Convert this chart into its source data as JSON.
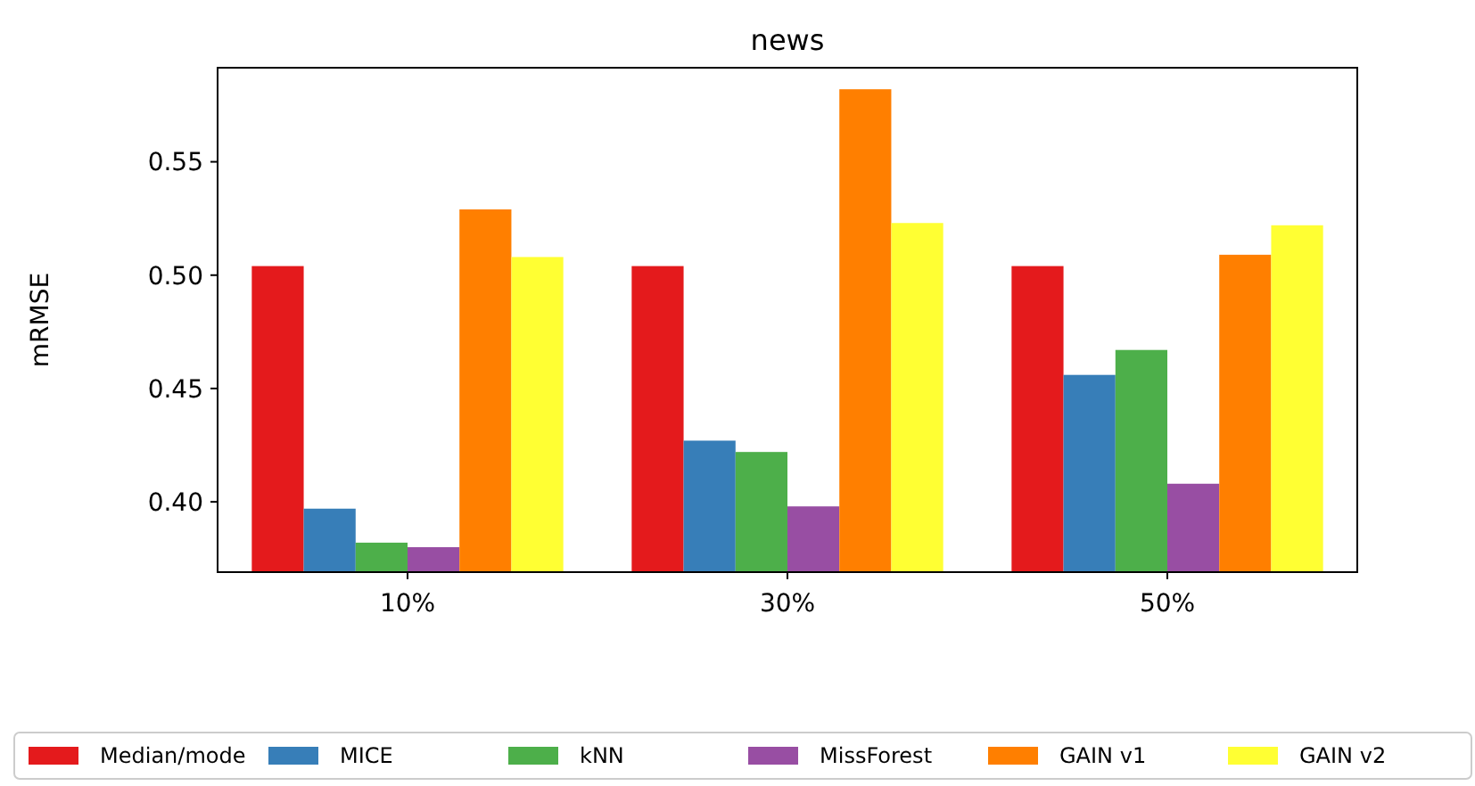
{
  "chart_data": {
    "type": "bar",
    "title": "news",
    "ylabel": "mRMSE",
    "categories": [
      "10%",
      "30%",
      "50%"
    ],
    "series": [
      {
        "name": "Median/mode",
        "color": "#e41a1c",
        "values": [
          0.504,
          0.504,
          0.504
        ]
      },
      {
        "name": "MICE",
        "color": "#377eb8",
        "values": [
          0.397,
          0.427,
          0.456
        ]
      },
      {
        "name": "kNN",
        "color": "#4daf4a",
        "values": [
          0.382,
          0.422,
          0.467
        ]
      },
      {
        "name": "MissForest",
        "color": "#984ea3",
        "values": [
          0.38,
          0.398,
          0.408
        ]
      },
      {
        "name": "GAIN v1",
        "color": "#ff7f00",
        "values": [
          0.529,
          0.582,
          0.509
        ]
      },
      {
        "name": "GAIN v2",
        "color": "#ffff33",
        "values": [
          0.508,
          0.523,
          0.522
        ]
      }
    ],
    "ylim": [
      0.369,
      0.5915
    ],
    "yticks": [
      {
        "value": 0.4,
        "label": "0.40"
      },
      {
        "value": 0.45,
        "label": "0.45"
      },
      {
        "value": 0.5,
        "label": "0.50"
      },
      {
        "value": 0.55,
        "label": "0.55"
      }
    ],
    "legend": "bottom"
  }
}
